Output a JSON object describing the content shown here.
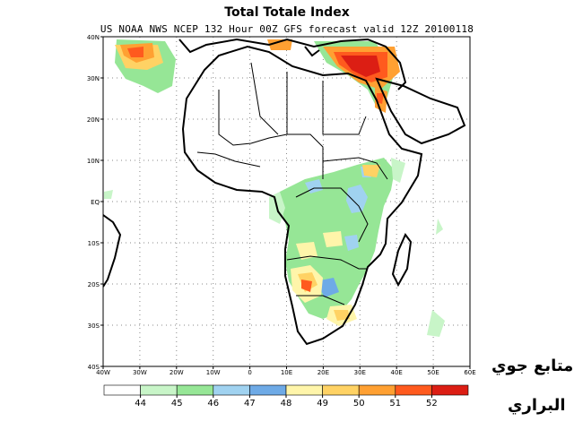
{
  "title": "Total Totale Index",
  "subtitle": "US NOAA NWS NCEP 132 Hour 00Z GFS forecast valid 12Z 20100118",
  "lat_labels": [
    "40N",
    "30N",
    "20N",
    "10N",
    "EQ",
    "10S",
    "20S",
    "30S",
    "40S"
  ],
  "lon_labels": [
    "40W",
    "30W",
    "20W",
    "10W",
    "0",
    "10E",
    "20E",
    "30E",
    "40E",
    "50E",
    "60E"
  ],
  "legend": {
    "values": [
      "44",
      "45",
      "46",
      "47",
      "48",
      "49",
      "50",
      "51",
      "52"
    ],
    "colors": [
      "#ffffff",
      "#c8f5c8",
      "#96e696",
      "#a0d2f0",
      "#6eaae6",
      "#fff5aa",
      "#ffd264",
      "#ffa032",
      "#ff5a1e",
      "#dc1e14"
    ]
  },
  "watermark": {
    "line1": "متابع جوي",
    "line2": "البراري"
  }
}
